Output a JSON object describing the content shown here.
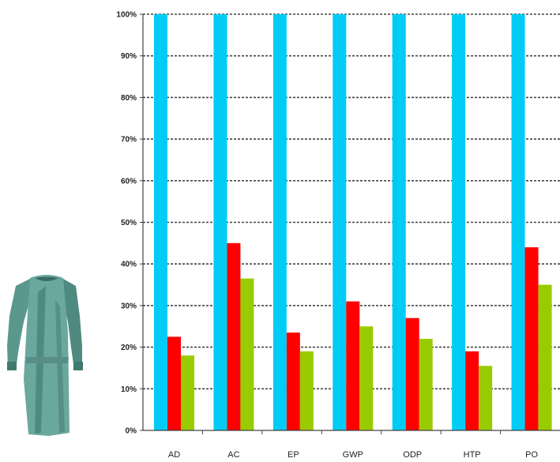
{
  "chart_data": {
    "type": "bar",
    "categories": [
      "AD",
      "AC",
      "EP",
      "GWP",
      "ODP",
      "HTP",
      "PO"
    ],
    "series": [
      {
        "values": [
          100,
          100,
          100,
          100,
          100,
          100,
          100
        ],
        "color": "#00ccf5"
      },
      {
        "values": [
          22.5,
          45,
          23.5,
          31,
          27,
          19,
          44
        ],
        "color": "#ff0000"
      },
      {
        "values": [
          18,
          36.5,
          19,
          25,
          22,
          15.5,
          35
        ],
        "color": "#99cc00"
      }
    ],
    "y_ticks": [
      "0%",
      "10%",
      "20%",
      "30%",
      "40%",
      "50%",
      "60%",
      "70%",
      "80%",
      "90%",
      "100%"
    ],
    "ylim": [
      0,
      100
    ],
    "grid": "dashed horizontal",
    "legend": "none",
    "title": "",
    "xlabel": "",
    "ylabel": ""
  },
  "illustration": {
    "icon": "surgical-gown-icon",
    "colors": {
      "gown": "#5e9e94",
      "shadow": "#3f7a70",
      "highlight": "#86bdb3"
    }
  }
}
